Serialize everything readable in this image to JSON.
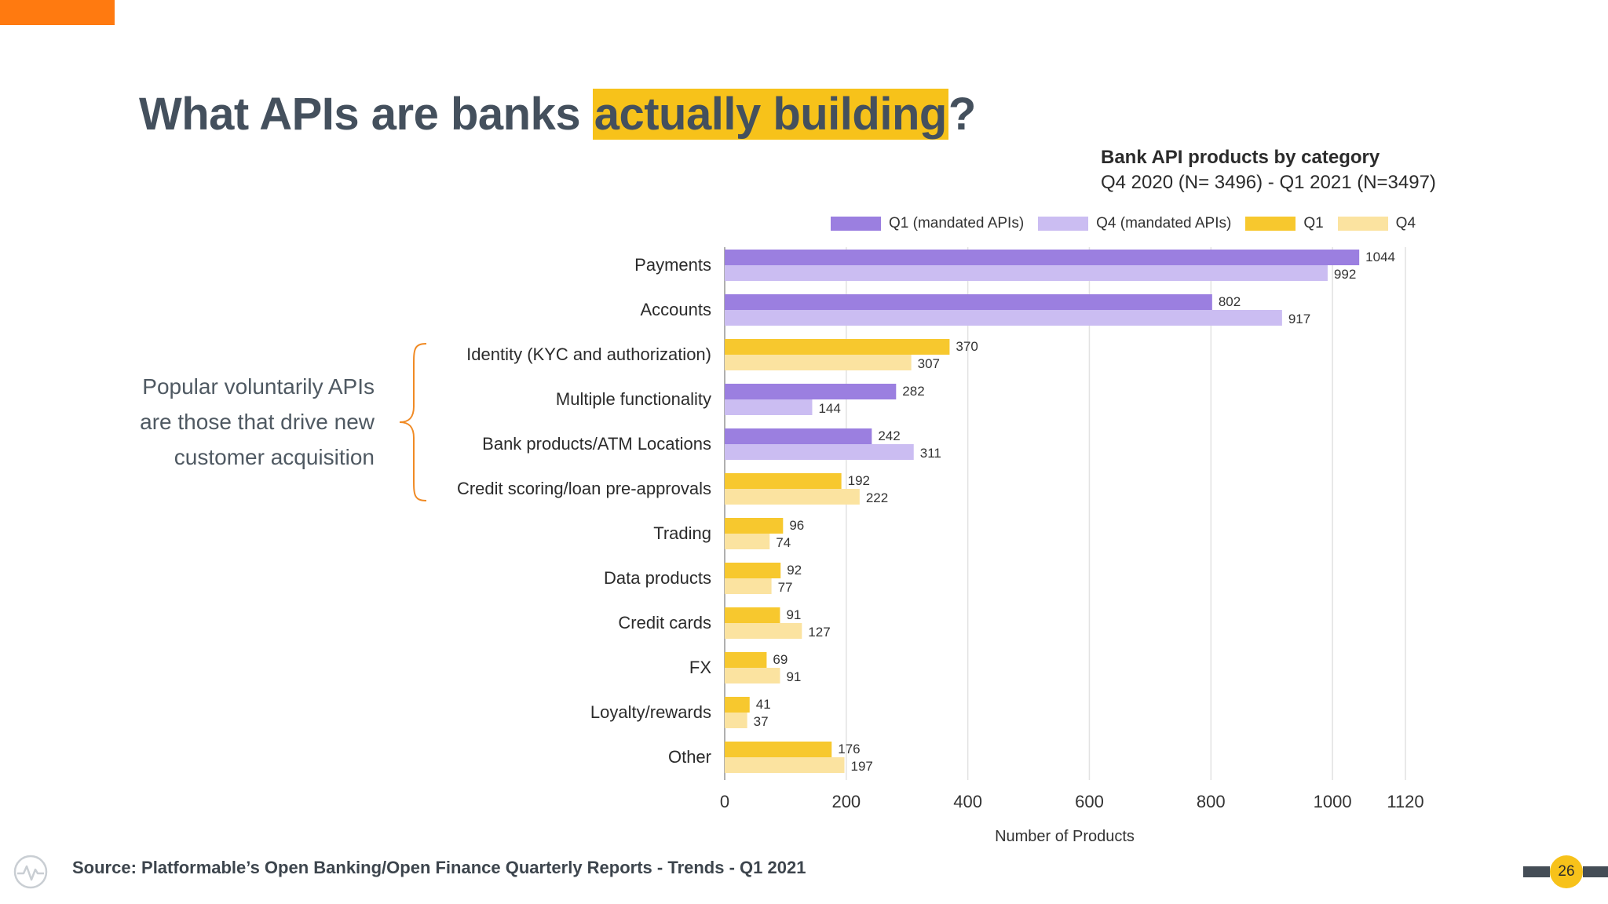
{
  "slide": {
    "headline_pre": "What APIs are banks ",
    "headline_highlight": "actually building",
    "headline_post": "?",
    "callout_lines": [
      "Popular voluntarily APIs",
      "are those that drive new",
      "customer acquisition"
    ],
    "source": "Source: Platformable’s Open Banking/Open Finance Quarterly Reports - Trends - Q1 2021",
    "page_number": "26",
    "colors": {
      "accent_orange": "#ff7a10",
      "highlight_yellow": "#f7c21a",
      "headline_text": "#44505d"
    },
    "icons": {
      "logo": "pulse-circle-logo-icon",
      "brace": "curly-brace-icon"
    }
  },
  "chart_data": {
    "type": "bar",
    "orientation": "horizontal",
    "title": "Bank API products by category",
    "subtitle": "Q4 2020 (N= 3496) - Q1 2021 (N=3497)",
    "xlabel": "Number of Products",
    "ylabel": "",
    "xlim": [
      0,
      1120
    ],
    "xticks": [
      0,
      200,
      400,
      600,
      800,
      1000,
      1120
    ],
    "grid": true,
    "legend_position": "top",
    "legend": [
      {
        "label": "Q1 (mandated APIs)",
        "color": "#9b7fe0"
      },
      {
        "label": "Q4 (mandated APIs)",
        "color": "#cbbdf2"
      },
      {
        "label": "Q1",
        "color": "#f7c82e"
      },
      {
        "label": "Q4",
        "color": "#fbe3a0"
      }
    ],
    "categories": [
      {
        "label": "Payments",
        "mandated": true,
        "q1": 1044,
        "q4": 992
      },
      {
        "label": "Accounts",
        "mandated": true,
        "q1": 802,
        "q4": 917
      },
      {
        "label": "Identity (KYC and authorization)",
        "mandated": false,
        "q1": 370,
        "q4": 307
      },
      {
        "label": "Multiple functionality",
        "mandated": true,
        "q1": 282,
        "q4": 144
      },
      {
        "label": "Bank products/ATM Locations",
        "mandated": true,
        "q1": 242,
        "q4": 311
      },
      {
        "label": "Credit scoring/loan pre-approvals",
        "mandated": false,
        "q1": 192,
        "q4": 222
      },
      {
        "label": "Trading",
        "mandated": false,
        "q1": 96,
        "q4": 74
      },
      {
        "label": "Data products",
        "mandated": false,
        "q1": 92,
        "q4": 77
      },
      {
        "label": "Credit cards",
        "mandated": false,
        "q1": 91,
        "q4": 127
      },
      {
        "label": "FX",
        "mandated": false,
        "q1": 69,
        "q4": 91
      },
      {
        "label": "Loyalty/rewards",
        "mandated": false,
        "q1": 41,
        "q4": 37
      },
      {
        "label": "Other",
        "mandated": false,
        "q1": 176,
        "q4": 197
      }
    ]
  }
}
